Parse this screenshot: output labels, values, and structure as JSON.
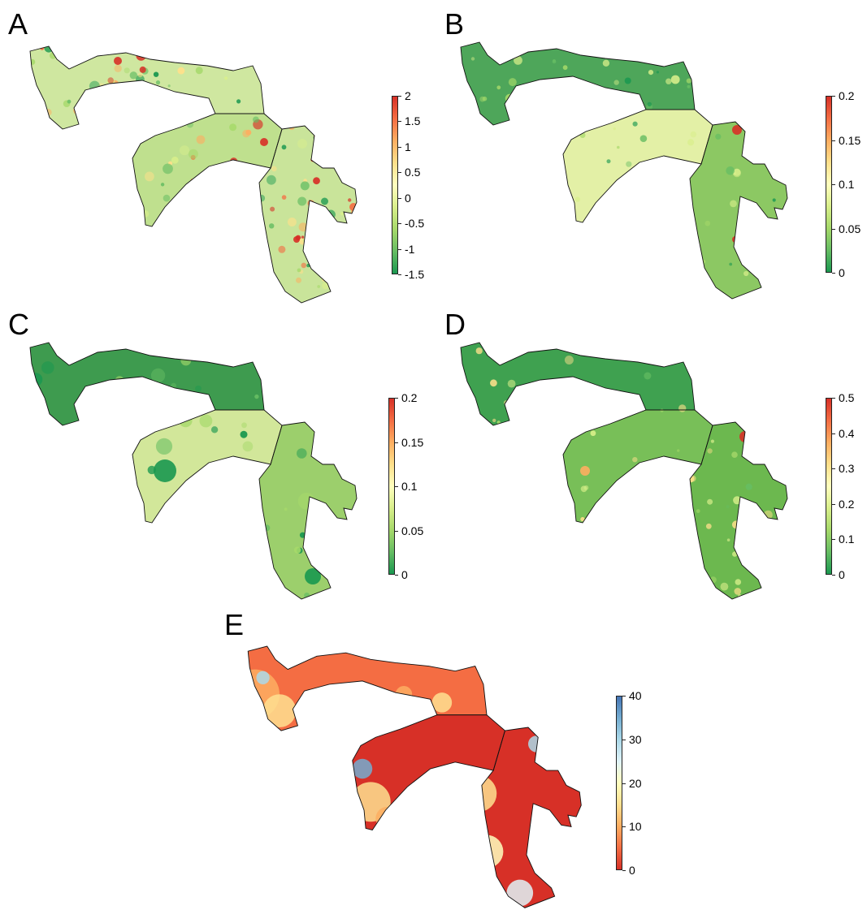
{
  "panels": [
    {
      "label": "A",
      "ticks": [
        "2",
        "1.5",
        "1",
        "0.5",
        "0",
        "-0.5",
        "-1",
        "-1.5"
      ],
      "colors": {
        "left": "#8fc567",
        "right": "#cbe095",
        "hot": "#d73027",
        "warm": "#fdae61"
      }
    },
    {
      "label": "B",
      "ticks": [
        "0.2",
        "0.15",
        "0.1",
        "0.05",
        "0"
      ],
      "colors": {
        "left": "#3a9a4d",
        "right": "#a9d26f",
        "hot": "#d73027",
        "warm": "#fee08b"
      }
    },
    {
      "label": "C",
      "ticks": [
        "0.2",
        "0.15",
        "0.1",
        "0.05",
        "0"
      ],
      "colors": {
        "left": "#2b8a3e",
        "right": "#86c25a",
        "hot": "#1a7a35",
        "warm": "#e9f2a8"
      }
    },
    {
      "label": "D",
      "ticks": [
        "0.5",
        "0.4",
        "0.3",
        "0.2",
        "0.1",
        "0"
      ],
      "colors": {
        "left": "#2f9446",
        "right": "#6cb64d",
        "hot": "#d73027",
        "warm": "#f4e08a"
      }
    }
  ],
  "panel_e": {
    "label": "E",
    "ticks": [
      "40",
      "30",
      "20",
      "10",
      "0"
    ]
  },
  "colors": {
    "rdylgn": [
      "#1a9850",
      "#66bd63",
      "#a6d96a",
      "#d9ef8b",
      "#ffffbf",
      "#fee08b",
      "#fdae61",
      "#f46d43",
      "#d73027"
    ],
    "rdylbu": [
      "#d73027",
      "#f46d43",
      "#fdae61",
      "#fee090",
      "#ffffbf",
      "#e0f3f8",
      "#abd9e9",
      "#74add1",
      "#4575b4"
    ]
  }
}
